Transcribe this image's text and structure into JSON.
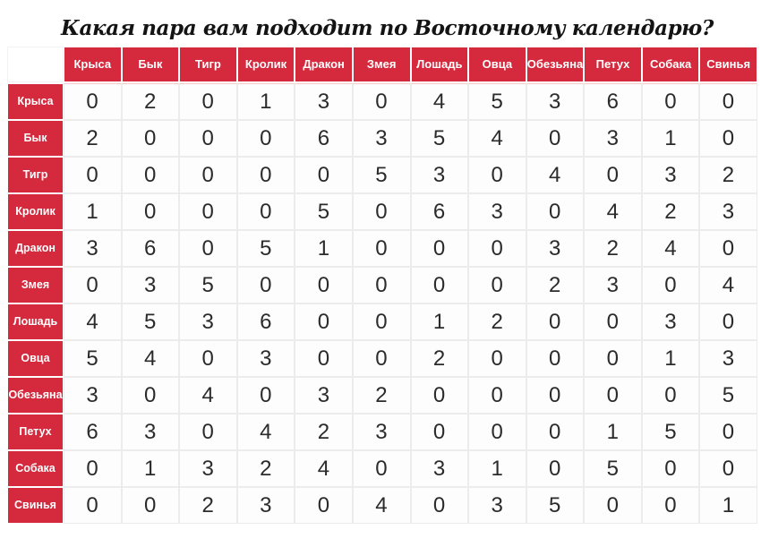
{
  "page": {
    "title": "Какая пара вам подходит по Восточному календарю?"
  },
  "colors": {
    "accent_red": "#d5293d",
    "header_text": "#ffffff",
    "cell_background": "#fdfdfd",
    "cell_border": "#ececec",
    "cell_text": "#2b2b2b",
    "title_text": "#141414"
  },
  "chart_data": {
    "type": "table",
    "title": "Какая пара вам подходит по Восточному календарю?",
    "description_visible_structure": "12x12 symmetric compatibility matrix of Eastern calendar zodiac signs",
    "columns": [
      "Крыса",
      "Бык",
      "Тигр",
      "Кролик",
      "Дракон",
      "Змея",
      "Лошадь",
      "Овца",
      "Обезьяна",
      "Петух",
      "Собака",
      "Свинья"
    ],
    "rows": [
      "Крыса",
      "Бык",
      "Тигр",
      "Кролик",
      "Дракон",
      "Змея",
      "Лошадь",
      "Овца",
      "Обезьяна",
      "Петух",
      "Собака",
      "Свинья"
    ],
    "values": [
      [
        0,
        2,
        0,
        1,
        3,
        0,
        4,
        5,
        3,
        6,
        0,
        0
      ],
      [
        2,
        0,
        0,
        0,
        6,
        3,
        5,
        4,
        0,
        3,
        1,
        0
      ],
      [
        0,
        0,
        0,
        0,
        0,
        5,
        3,
        0,
        4,
        0,
        3,
        2
      ],
      [
        1,
        0,
        0,
        0,
        5,
        0,
        6,
        3,
        0,
        4,
        2,
        3
      ],
      [
        3,
        6,
        0,
        5,
        1,
        0,
        0,
        0,
        3,
        2,
        4,
        0
      ],
      [
        0,
        3,
        5,
        0,
        0,
        0,
        0,
        0,
        2,
        3,
        0,
        4
      ],
      [
        4,
        5,
        3,
        6,
        0,
        0,
        1,
        2,
        0,
        0,
        3,
        0
      ],
      [
        5,
        4,
        0,
        3,
        0,
        0,
        2,
        0,
        0,
        0,
        1,
        3
      ],
      [
        3,
        0,
        4,
        0,
        3,
        2,
        0,
        0,
        0,
        0,
        0,
        5
      ],
      [
        6,
        3,
        0,
        4,
        2,
        3,
        0,
        0,
        0,
        1,
        5,
        0
      ],
      [
        0,
        1,
        3,
        2,
        4,
        0,
        3,
        1,
        0,
        5,
        0,
        0
      ],
      [
        0,
        0,
        2,
        3,
        0,
        4,
        0,
        3,
        5,
        0,
        0,
        1
      ]
    ]
  }
}
